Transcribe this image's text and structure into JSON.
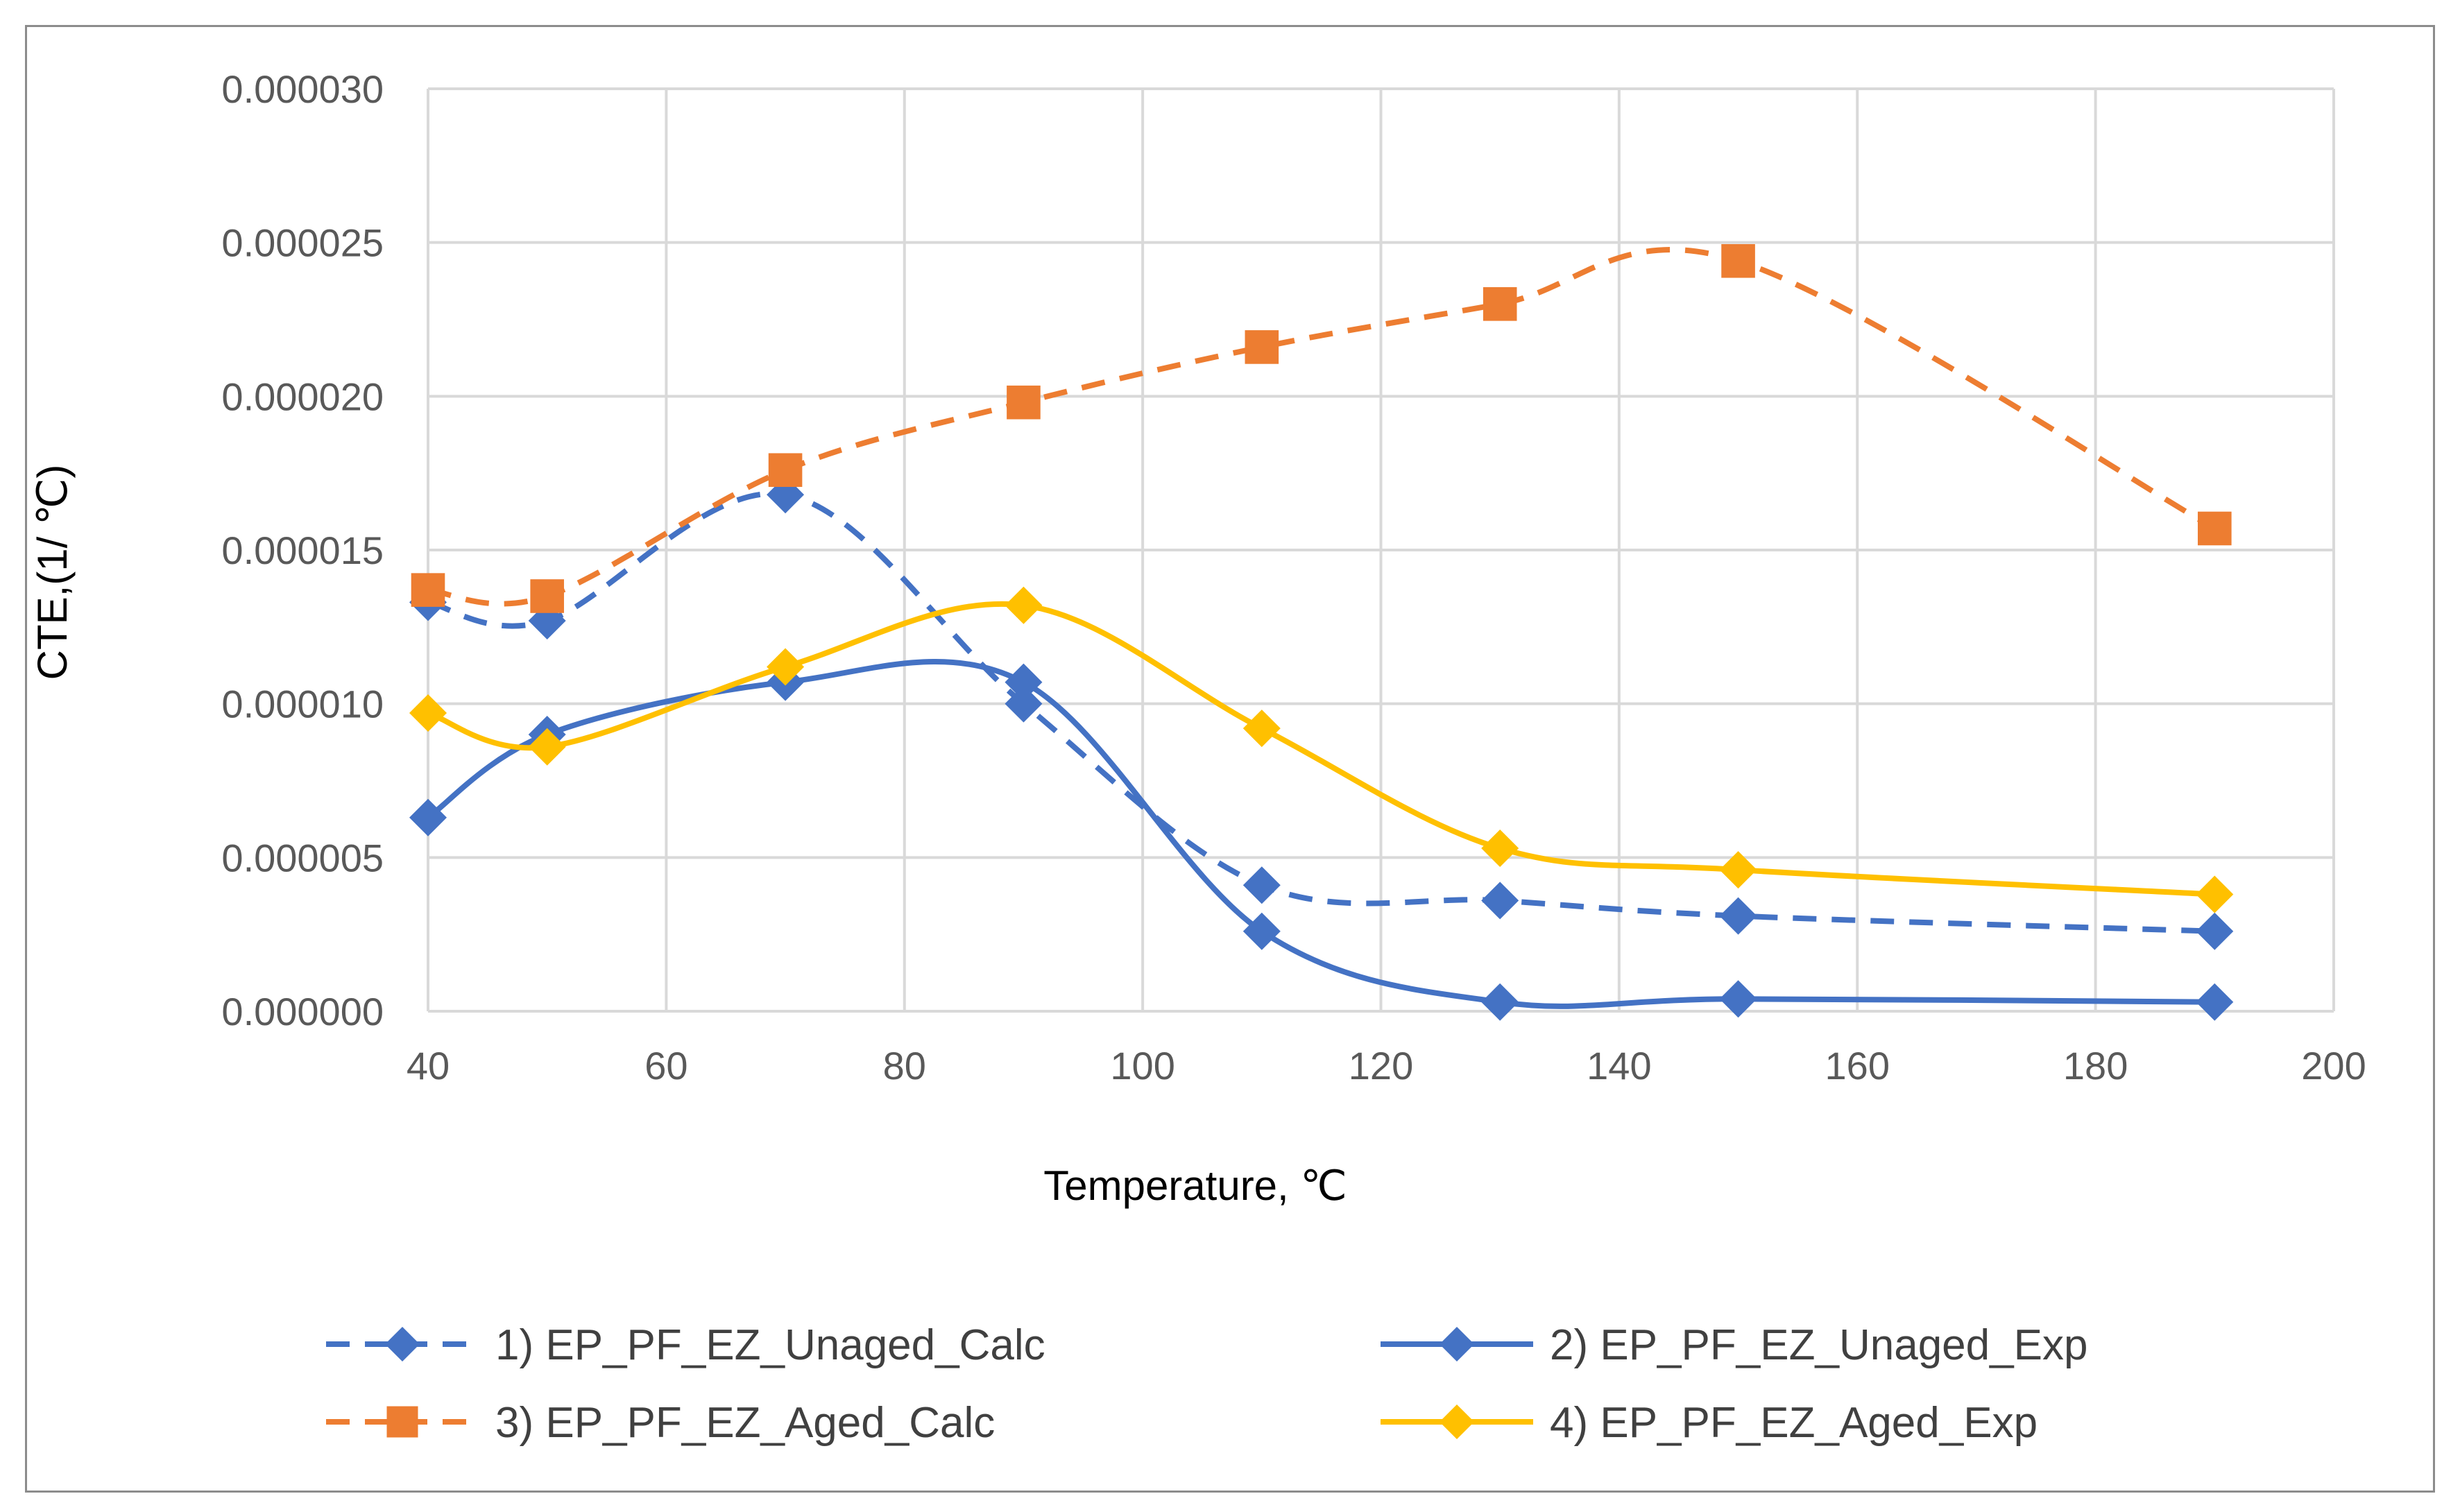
{
  "chart_data": {
    "type": "line",
    "title": "",
    "xlabel": "Temperature,  ℃",
    "ylabel": "CTE,(1/ ℃)",
    "xlim": [
      40,
      200
    ],
    "ylim": [
      0,
      3e-05
    ],
    "xticks": [
      "40",
      "60",
      "80",
      "100",
      "120",
      "140",
      "160",
      "180",
      "200"
    ],
    "yticks": [
      "0.000000",
      "0.000005",
      "0.000010",
      "0.000015",
      "0.000020",
      "0.000025",
      "0.000030"
    ],
    "grid": true,
    "legend_position": "bottom",
    "x": [
      40,
      50,
      70,
      90,
      110,
      130,
      150,
      190
    ],
    "series": [
      {
        "name": "1) EP_PF_EZ_Unaged_Calc",
        "color": "#4472C4",
        "line_style": "dashed",
        "marker": "diamond",
        "values": [
          1.33e-05,
          1.27e-05,
          1.68e-05,
          1e-05,
          4.1e-06,
          3.6e-06,
          3.1e-06,
          2.6e-06
        ]
      },
      {
        "name": "2) EP_PF_EZ_Unaged_Exp",
        "color": "#4472C4",
        "line_style": "solid",
        "marker": "diamond",
        "values": [
          6.3e-06,
          9e-06,
          1.07e-05,
          1.07e-05,
          2.6e-06,
          3e-07,
          4e-07,
          3e-07
        ]
      },
      {
        "name": "3) EP_PF_EZ_Aged_Calc",
        "color": "#ED7D31",
        "line_style": "dashed",
        "marker": "square",
        "values": [
          1.37e-05,
          1.35e-05,
          1.76e-05,
          1.98e-05,
          2.16e-05,
          2.3e-05,
          2.44e-05,
          1.57e-05
        ]
      },
      {
        "name": "4) EP_PF_EZ_Aged_Exp",
        "color": "#FFC000",
        "line_style": "solid",
        "marker": "diamond",
        "values": [
          9.7e-06,
          8.6e-06,
          1.12e-05,
          1.32e-05,
          9.2e-06,
          5.3e-06,
          4.6e-06,
          3.8e-06
        ]
      }
    ]
  }
}
